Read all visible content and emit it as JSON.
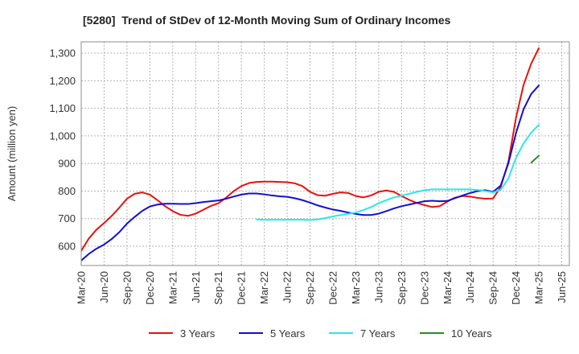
{
  "chart_data": {
    "type": "line",
    "title": "[5280]  Trend of StDev of 12-Month Moving Sum of Ordinary Incomes",
    "xlabel": "",
    "ylabel": "Amount (million yen)",
    "x_tick_labels": [
      "Mar-20",
      "Jun-20",
      "Sep-20",
      "Dec-20",
      "Mar-21",
      "Jun-21",
      "Sep-21",
      "Dec-21",
      "Mar-22",
      "Jun-22",
      "Sep-22",
      "Dec-22",
      "Mar-23",
      "Jun-23",
      "Sep-23",
      "Dec-23",
      "Mar-24",
      "Jun-24",
      "Sep-24",
      "Dec-24",
      "Mar-25",
      "Jun-25"
    ],
    "months_per_tick": 3,
    "xlim": [
      0,
      64
    ],
    "ylim": [
      530,
      1341
    ],
    "yticks": [
      600,
      700,
      800,
      900,
      1000,
      1100,
      1200,
      1300
    ],
    "grid": true,
    "legend_position": "bottom",
    "series": [
      {
        "name": "3 Years",
        "color": "#e6120e",
        "start_month": 0,
        "values": [
          583,
          628,
          660,
          684,
          710,
          740,
          772,
          790,
          795,
          787,
          767,
          745,
          727,
          714,
          710,
          718,
          732,
          746,
          756,
          776,
          800,
          818,
          829,
          833,
          834,
          834,
          833,
          832,
          828,
          818,
          797,
          785,
          783,
          790,
          795,
          793,
          782,
          777,
          784,
          797,
          802,
          797,
          782,
          768,
          757,
          749,
          742,
          745,
          762,
          776,
          782,
          780,
          775,
          772,
          773,
          815,
          905,
          1065,
          1185,
          1262,
          1318
        ]
      },
      {
        "name": "5 Years",
        "color": "#1010d2",
        "start_month": 0,
        "values": [
          548,
          572,
          591,
          606,
          626,
          651,
          682,
          706,
          728,
          744,
          751,
          754,
          754,
          753,
          753,
          756,
          760,
          763,
          766,
          772,
          780,
          787,
          791,
          791,
          788,
          784,
          781,
          779,
          774,
          767,
          758,
          748,
          740,
          733,
          728,
          722,
          717,
          713,
          713,
          718,
          727,
          737,
          745,
          751,
          757,
          763,
          765,
          763,
          764,
          774,
          784,
          793,
          800,
          803,
          797,
          820,
          900,
          1010,
          1097,
          1152,
          1183
        ]
      },
      {
        "name": "7 Years",
        "color": "#2ae8ea",
        "start_month": 23,
        "values": [
          697,
          696,
          696,
          696,
          696,
          696,
          696,
          695,
          697,
          702,
          708,
          713,
          717,
          722,
          731,
          742,
          756,
          767,
          777,
          783,
          790,
          797,
          803,
          806,
          806,
          806,
          806,
          806,
          806,
          804,
          800,
          795,
          805,
          845,
          920,
          973,
          1012,
          1040
        ]
      },
      {
        "name": "10 Years",
        "color": "#2a8a2a",
        "start_month": 59,
        "values": [
          903,
          928
        ]
      }
    ]
  }
}
